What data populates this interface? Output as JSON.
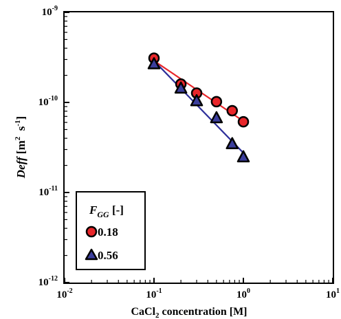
{
  "chart_data": {
    "type": "scatter",
    "x_scale": "log",
    "y_scale": "log",
    "xlim": [
      0.01,
      10
    ],
    "ylim": [
      1e-12,
      1e-09
    ],
    "x_ticks": [
      {
        "base": "10",
        "exp": "-2",
        "value": 0.01
      },
      {
        "base": "10",
        "exp": "-1",
        "value": 0.1
      },
      {
        "base": "10",
        "exp": "0",
        "value": 1
      },
      {
        "base": "10",
        "exp": "1",
        "value": 10
      }
    ],
    "y_ticks": [
      {
        "base": "10",
        "exp": "-12",
        "value": 1e-12
      },
      {
        "base": "10",
        "exp": "-11",
        "value": 1e-11
      },
      {
        "base": "10",
        "exp": "-10",
        "value": 1e-10
      },
      {
        "base": "10",
        "exp": "-9",
        "value": 1e-09
      }
    ],
    "xlabel": {
      "pre": "CaCl",
      "sub": "2",
      "post": " concentration [M]"
    },
    "ylabel": {
      "main": "Deff",
      "units_pre": " [m",
      "sup1": "2",
      "mid": "  s",
      "sup2": "-1",
      "units_post": "]"
    },
    "grid": false,
    "legend": {
      "position": "bottom-left",
      "title_main": "F",
      "title_sub": "GG",
      "title_post": " [-]"
    },
    "series": [
      {
        "name": "0.18",
        "marker": "circle",
        "marker_color": "#e8262a",
        "line_color": "#e8262a",
        "x": [
          0.1,
          0.2,
          0.3,
          0.5,
          0.75,
          1.0
        ],
        "y": [
          3.1e-10,
          1.6e-10,
          1.27e-10,
          1.02e-10,
          8.1e-11,
          6.1e-11
        ]
      },
      {
        "name": "0.56",
        "marker": "triangle",
        "marker_color": "#3b3e9c",
        "line_color": "#2d2f9a",
        "x": [
          0.1,
          0.2,
          0.3,
          0.5,
          0.75,
          1.0
        ],
        "y": [
          2.7e-10,
          1.45e-10,
          1.05e-10,
          6.8e-11,
          3.5e-11,
          2.5e-11
        ]
      }
    ],
    "trendlines": [
      {
        "series": "0.18",
        "x": [
          0.1,
          1.0
        ],
        "y": [
          2.9e-10,
          6.2e-11
        ]
      },
      {
        "series": "0.56",
        "x": [
          0.1,
          1.0
        ],
        "y": [
          2.9e-10,
          2.75e-11
        ]
      }
    ]
  }
}
